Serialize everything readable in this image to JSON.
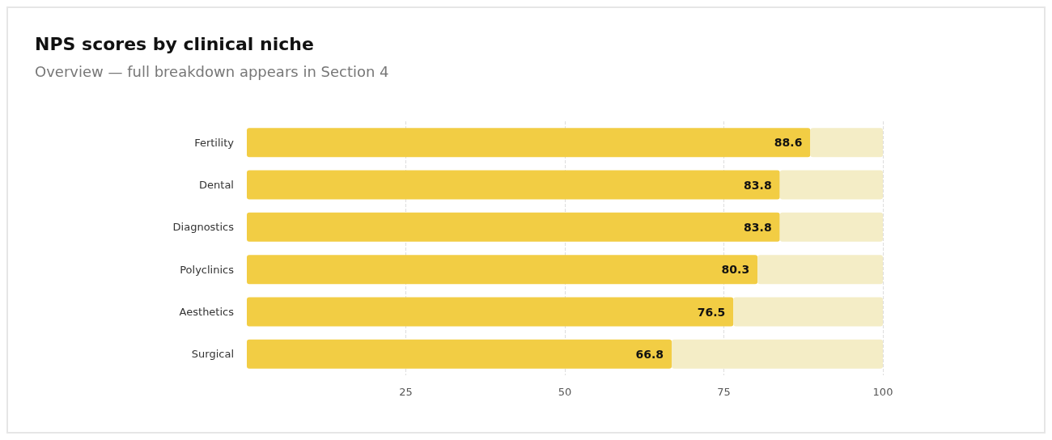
{
  "chart_data": {
    "type": "bar",
    "orientation": "horizontal",
    "stacked": true,
    "title": "NPS scores by clinical niche",
    "subtitle": "Overview — full breakdown appears in Section 4",
    "categories": [
      "Fertility",
      "Dental",
      "Diagnostics",
      "Polyclinics",
      "Aesthetics",
      "Surgical"
    ],
    "series": [
      {
        "color": "#f2cd44",
        "values": [
          88.6,
          83.8,
          83.8,
          80.3,
          76.5,
          66.8
        ],
        "value_labels": [
          "88.6",
          "83.8",
          "83.8",
          "80.3",
          "76.5",
          "66.8"
        ]
      },
      {
        "color": "#f4edc6",
        "values": [
          11.4,
          16.2,
          16.2,
          19.7,
          23.5,
          33.2
        ]
      }
    ],
    "xlim": [
      0,
      100
    ],
    "xticks": [
      25,
      50,
      75,
      100
    ],
    "grid": "x"
  }
}
